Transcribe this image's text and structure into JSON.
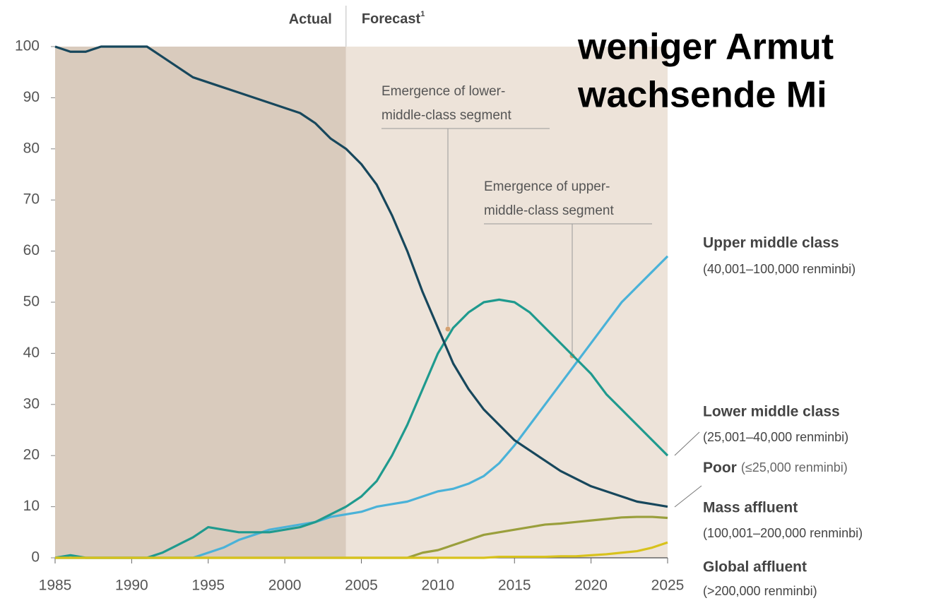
{
  "chart_data": {
    "type": "line",
    "title": [
      "weniger Armut",
      "wachsende Mi"
    ],
    "period_labels": {
      "actual": "Actual",
      "forecast": "Forecast",
      "forecast_note": "1"
    },
    "forecast_start": 2004,
    "annotations": [
      [
        "Emergence of lower-",
        "middle-class segment"
      ],
      [
        "Emergence of upper-",
        "middle-class segment"
      ]
    ],
    "x": [
      1985,
      1986,
      1987,
      1988,
      1989,
      1990,
      1991,
      1992,
      1993,
      1994,
      1995,
      1996,
      1997,
      1998,
      1999,
      2000,
      2001,
      2002,
      2003,
      2004,
      2005,
      2006,
      2007,
      2008,
      2009,
      2010,
      2011,
      2012,
      2013,
      2014,
      2015,
      2016,
      2017,
      2018,
      2019,
      2020,
      2021,
      2022,
      2023,
      2024,
      2025
    ],
    "xlim": [
      1985,
      2025
    ],
    "xticks": [
      1985,
      1990,
      1995,
      2000,
      2005,
      2010,
      2015,
      2020,
      2025
    ],
    "ylim": [
      0,
      100
    ],
    "yticks": [
      0,
      10,
      20,
      30,
      40,
      50,
      60,
      70,
      80,
      90,
      100
    ],
    "series": [
      {
        "name": "Upper middle class",
        "range": "(40,001–100,000 renminbi)",
        "color": "#4ab2d8",
        "values": [
          0,
          0,
          0,
          0,
          0,
          0,
          0,
          0,
          0,
          0,
          1,
          2,
          3.5,
          4.5,
          5.5,
          6,
          6.5,
          7,
          8,
          8.5,
          9,
          10,
          10.5,
          11,
          12,
          13,
          13.5,
          14.5,
          16,
          18.5,
          22,
          26,
          30,
          34,
          38,
          42,
          46,
          50,
          53,
          56,
          59
        ]
      },
      {
        "name": "Lower middle class",
        "range": "(25,001–40,000 renminbi)",
        "color": "#1f9a8e",
        "values": [
          0,
          0.5,
          0,
          0,
          0,
          0,
          0,
          1,
          2.5,
          4,
          6,
          5.5,
          5,
          5,
          5,
          5.5,
          6,
          7,
          8.5,
          10,
          12,
          15,
          20,
          26,
          33,
          40,
          45,
          48,
          50,
          50.5,
          50,
          48,
          45,
          42,
          39,
          36,
          32,
          29,
          26,
          23,
          20
        ]
      },
      {
        "name": "Poor",
        "range": "(≤25,000 renminbi)",
        "color": "#17475c",
        "values": [
          100,
          99,
          99,
          100,
          100,
          100,
          100,
          98,
          96,
          94,
          93,
          92,
          91,
          90,
          89,
          88,
          87,
          85,
          82,
          80,
          77,
          73,
          67,
          60,
          52,
          45,
          38,
          33,
          29,
          26,
          23,
          21,
          19,
          17,
          15.5,
          14,
          13,
          12,
          11,
          10.5,
          10
        ]
      },
      {
        "name": "Mass affluent",
        "range": "(100,001–200,000 renminbi)",
        "color": "#9a9f3c",
        "values": [
          0,
          0,
          0,
          0,
          0,
          0,
          0,
          0,
          0,
          0,
          0,
          0,
          0,
          0,
          0,
          0,
          0,
          0,
          0,
          0,
          0,
          0,
          0,
          0,
          1,
          1.5,
          2.5,
          3.5,
          4.5,
          5,
          5.5,
          6,
          6.5,
          6.7,
          7,
          7.3,
          7.6,
          7.9,
          8,
          8,
          7.8
        ]
      },
      {
        "name": "Global affluent",
        "range": "(>200,000 renminbi)",
        "color": "#d8c21c",
        "values": [
          0,
          0,
          0,
          0,
          0,
          0,
          0,
          0,
          0,
          0,
          0,
          0,
          0,
          0,
          0,
          0,
          0,
          0,
          0,
          0,
          0,
          0,
          0,
          0,
          0,
          0,
          0,
          0,
          0,
          0.2,
          0.2,
          0.2,
          0.2,
          0.3,
          0.3,
          0.5,
          0.7,
          1,
          1.3,
          2,
          3
        ]
      }
    ]
  }
}
